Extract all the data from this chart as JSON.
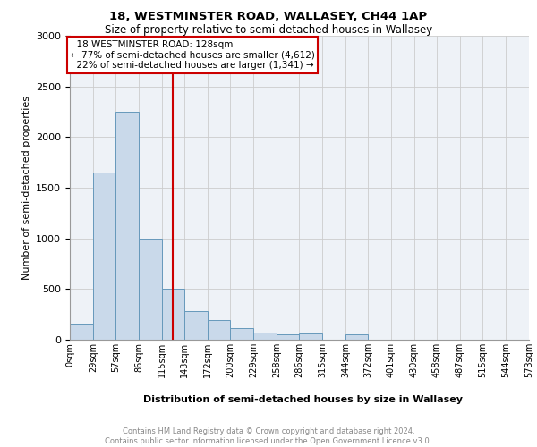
{
  "title1": "18, WESTMINSTER ROAD, WALLASEY, CH44 1AP",
  "title2": "Size of property relative to semi-detached houses in Wallasey",
  "xlabel": "Distribution of semi-detached houses by size in Wallasey",
  "ylabel": "Number of semi-detached properties",
  "property_size": 128,
  "property_label": "18 WESTMINSTER ROAD: 128sqm",
  "pct_smaller": 77,
  "pct_larger": 22,
  "n_smaller": 4612,
  "n_larger": 1341,
  "bar_color": "#c9d9ea",
  "bar_edge_color": "#6699bb",
  "vline_color": "#cc0000",
  "annotation_box_color": "#cc0000",
  "grid_color": "#cccccc",
  "background_color": "#eef2f7",
  "bin_edges": [
    0,
    29,
    57,
    86,
    115,
    143,
    172,
    200,
    229,
    258,
    286,
    315,
    344,
    372,
    401,
    430,
    458,
    487,
    515,
    544,
    573
  ],
  "bin_counts": [
    160,
    1650,
    2250,
    1000,
    500,
    280,
    195,
    115,
    70,
    50,
    65,
    0,
    50,
    0,
    0,
    0,
    0,
    0,
    0,
    0
  ],
  "ylim": [
    0,
    3000
  ],
  "yticks": [
    0,
    500,
    1000,
    1500,
    2000,
    2500,
    3000
  ],
  "footer_line1": "Contains HM Land Registry data © Crown copyright and database right 2024.",
  "footer_line2": "Contains public sector information licensed under the Open Government Licence v3.0."
}
